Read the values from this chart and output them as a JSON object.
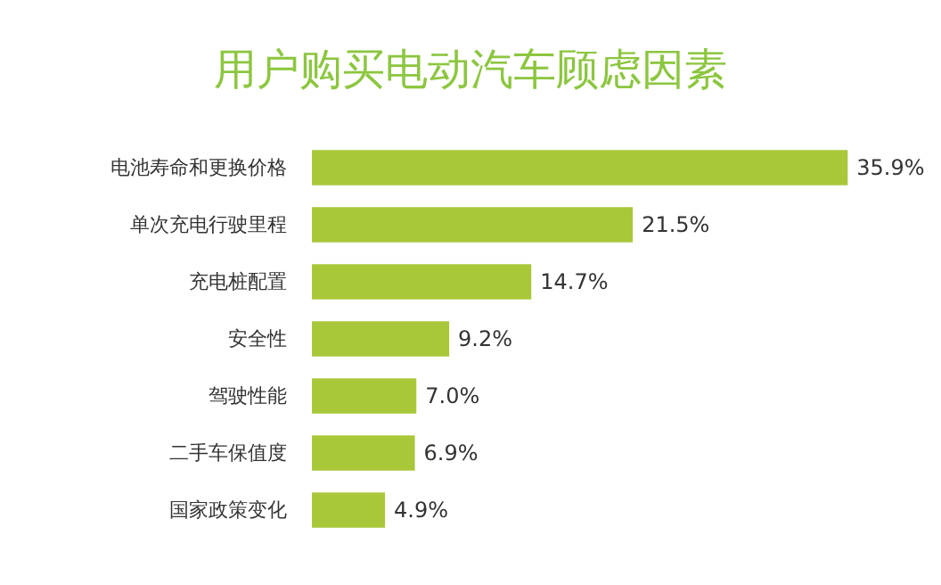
{
  "chart_data": {
    "type": "bar",
    "orientation": "horizontal",
    "title": "用户购买电动汽车顾虑因素",
    "categories": [
      "电池寿命和更换价格",
      "单次充电行驶里程",
      "充电桩配置",
      "安全性",
      "驾驶性能",
      "二手车保值度",
      "国家政策变化"
    ],
    "values": [
      35.9,
      21.5,
      14.7,
      9.2,
      7.0,
      6.9,
      4.9
    ],
    "value_labels": [
      "35.9%",
      "21.5%",
      "14.7%",
      "9.2%",
      "7.0%",
      "6.9%",
      "4.9%"
    ],
    "color": "#a8c83a"
  }
}
